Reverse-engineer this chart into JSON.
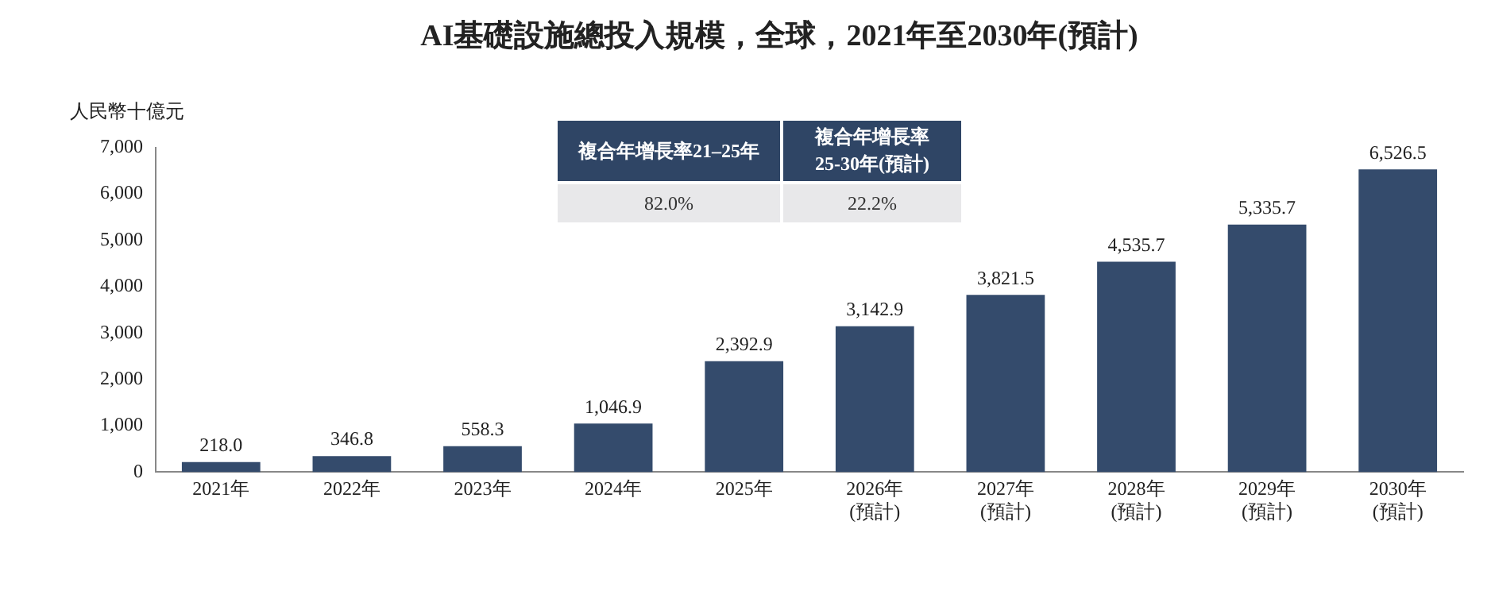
{
  "chart_data": {
    "type": "bar",
    "title": "AI基礎設施總投入規模，全球，2021年至2030年(預計)",
    "ylabel": "人民幣十億元",
    "categories": [
      "2021年",
      "2022年",
      "2023年",
      "2024年",
      "2025年",
      "2026年\n(預計)",
      "2027年\n(預計)",
      "2028年\n(預計)",
      "2029年\n(預計)",
      "2030年\n(預計)"
    ],
    "values": [
      218.0,
      346.8,
      558.3,
      1046.9,
      2392.9,
      3142.9,
      3821.5,
      4535.7,
      5335.7,
      6526.5
    ],
    "value_labels": [
      "218.0",
      "346.8",
      "558.3",
      "1,046.9",
      "2,392.9",
      "3,142.9",
      "3,821.5",
      "4,535.7",
      "5,335.7",
      "6,526.5"
    ],
    "color": "#344b6c",
    "ylim": [
      0,
      7000
    ],
    "yticks": [
      {
        "value": 0,
        "label": "0"
      },
      {
        "value": 1000,
        "label": "1,000"
      },
      {
        "value": 2000,
        "label": "2,000"
      },
      {
        "value": 3000,
        "label": "3,000"
      },
      {
        "value": 4000,
        "label": "4,000"
      },
      {
        "value": 5000,
        "label": "5,000"
      },
      {
        "value": 6000,
        "label": "6,000"
      },
      {
        "value": 7000,
        "label": "7,000"
      }
    ],
    "grid": false,
    "legend": false,
    "annotations": [
      "複合年增長率21–25年",
      "複合年增長率\n25-30年(預計)",
      "82.0%",
      "22.2%"
    ]
  }
}
